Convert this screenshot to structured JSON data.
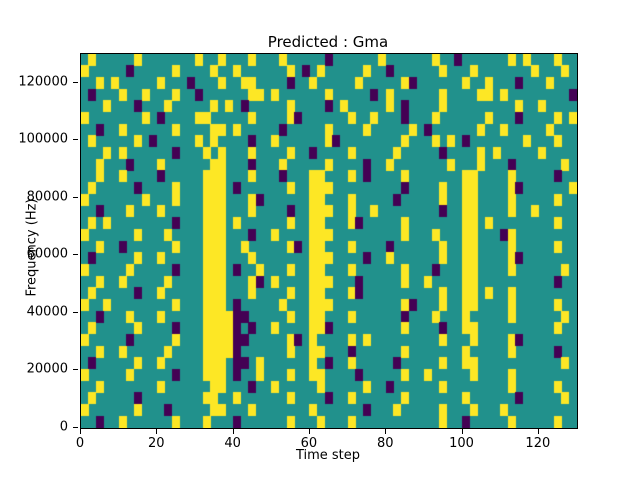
{
  "title": "Predicted : Gma",
  "xlabel": "Time step",
  "ylabel": "Frequency (Hz)",
  "chart_data": {
    "type": "heatmap",
    "title": "Predicted : Gma",
    "xlabel": "Time step",
    "ylabel": "Frequency (Hz)",
    "xlim": [
      0,
      130
    ],
    "ylim": [
      0,
      130000
    ],
    "x_ticks": [
      0,
      20,
      40,
      60,
      80,
      100,
      120
    ],
    "y_ticks": [
      0,
      20000,
      40000,
      60000,
      80000,
      100000,
      120000
    ],
    "legend": "none",
    "grid_on": false,
    "colors": {
      "background_teal": "#21918c",
      "high_yellow": "#fde725",
      "low_purple": "#440154"
    },
    "grid": {
      "ncols": 65,
      "nrows": 32,
      "time_steps_per_col": 2,
      "hz_per_row": 4062.5,
      "row_order": "top_high_freq_to_bottom_low_freq",
      "encoding": {
        ".": "teal",
        "y": "yellow",
        "p": "purple"
      },
      "rows": [
        ".y... ..y.. ..... y..y. ..y.. .y... ..p.. ....y ..... .y..p ..... .y.y. ..y..",
        "y.... .p... ..y.. ..y.. y.... ..y.p .y... ..y.. p.... ..y.. .y... ....y ...y.",
        "..y.y ..... y...p ...y. .yy.. ..p.. y.... .y... ..yp. ..... y..y. ..p.. .y...",
        ".p... y..y. ..y.. p.... ..yy. y.... ..y.. ...p. y.... ..y.. ..yy. y.... ....p",
        "...y. ..p.. .y... ..y.y .p... ..y.. ..p.y ..... y.p.. ..y.. ..... ..y.. y....",
        "y.... ...y. p.... yy... ..y.. ..yp. ..... y..y. ..p.. .y... ...y. ..p.. ..y.y",
        "..p.. y.... ..y.. ..yy. y.... .p... ..y.. ..y.. ...y. p.... ..y.. y.... .y...",
        ".y... ..y.p ..... y.y.. ..p.. y.... ..yp. ..... ..y.. .y.y. p.... ...y. ..y..",
        "...y. y.... ..p.. .y.y. ..y.. ..y.. p.... y.... .y... ..p.. ..y.y ..... y....",
        "..y.. .p... y.... ..yy. ..p.. .y... ..y.. ..p.. y.... ...y. ..y.. .p... ...y.",
        "..y.. y.... p.... .yyy. ..y.. .p... yy... y.p.. ..y.. ..... yy... .y... ..p..",
        ".y... ..p.. ..y.. .yyy. p.... ..y.. yyy.. ..... ..p.. ..y.. yy... .yp.. ....y",
        "y.... ...y. ..y.. .yyy. ..yp. ..... yy... y.... .p... ..y.. yy... .y... ..y..",
        "..p.. .y... y.... .yyy. ..y.. ..p.. yyy.. y..y. ..... ..p.. yy... .y..y .....",
        ".y.y. ..... ..p.. .yyy. y.... ..y.. yy... yp... ..y.. ..... yy.y. ..... ..y..",
        "y.... ..y.. .y... .yyy. ..p.. y.... yyy.. ..... ..y.. .y... yy... py... .....",
        "..y.. p.... ..y.. .yyy. .y... ..yp. yy... y.... p.... ..y.. yy... .y... ..y..",
        ".p... ..y.. y.... .yyy. ..y.. ..... yyy.. ..p.. y.... ..y.. yy... .yp.. .....",
        "y.... .y... ..p.. .yyy. p..y. ..y.. yy... y.... ..y.. .p... yy... .y... ...y.",
        "..y.. y.... .y... .yyy. ..yp. y.... yyy.. .p... ..y.. y.... yy... ..... ..p..",
        ".y... ..p.. y.... .yyy. ..y.. ..y.. yy... yp... ..... ..y.. yy.y. .y... .....",
        "y..y. ..... ..y.. .yyy. p.... .y... yyy.. ..... ..yp. ..y.. yy... .y... ..y..",
        "..p.. .y... y.... .yyyy pp... ..y.. yy... y.... ..p.. .y... y.... .y... ...y.",
        ".y... ..y.. ..p.. .yyyy p.p.. y.... yyp.. ..... ..y.. ..p.. yy... ..... ..y..",
        "y.... .p... ..y.. .yyyy pp... ..yp. y.... y.y.. ..... ..y.. .y... .yp.. .....",
        "..y.. y.... .y... .yyyy p.... ..y.. yy... p.... ..y.. ..... y.... .y... ..p..",
        ".p... ..y.. y.... .yyy. pp.y. ..... y.p.. y.... .p... ..y.. yy... ..... ...y.",
        "y.... .y... ..p.. .yyy. p..y. ..y.. yy... .p... ..y.. y.... .y... .y... .....",
        "..y.. ..... y.... ..yy. ..p.. y.... .y... ..y.. p.... ..y.. ..... .y... ..y..",
        ".y... ..p.. ..... .yy.. y.... ..y.. ..p.. y.... ..y.. ..... y.... ..p.. ...y.",
        "y.... ..y.. .p... ..yy. ..y.. ..... y.... ..p.. .y... ..y.. .y... y.... .....",
        "..p.. y.... ..y.. .y... p.... ..y.. .y... y.... ..... ..y.. p.... .y... ..y.."
      ]
    }
  }
}
